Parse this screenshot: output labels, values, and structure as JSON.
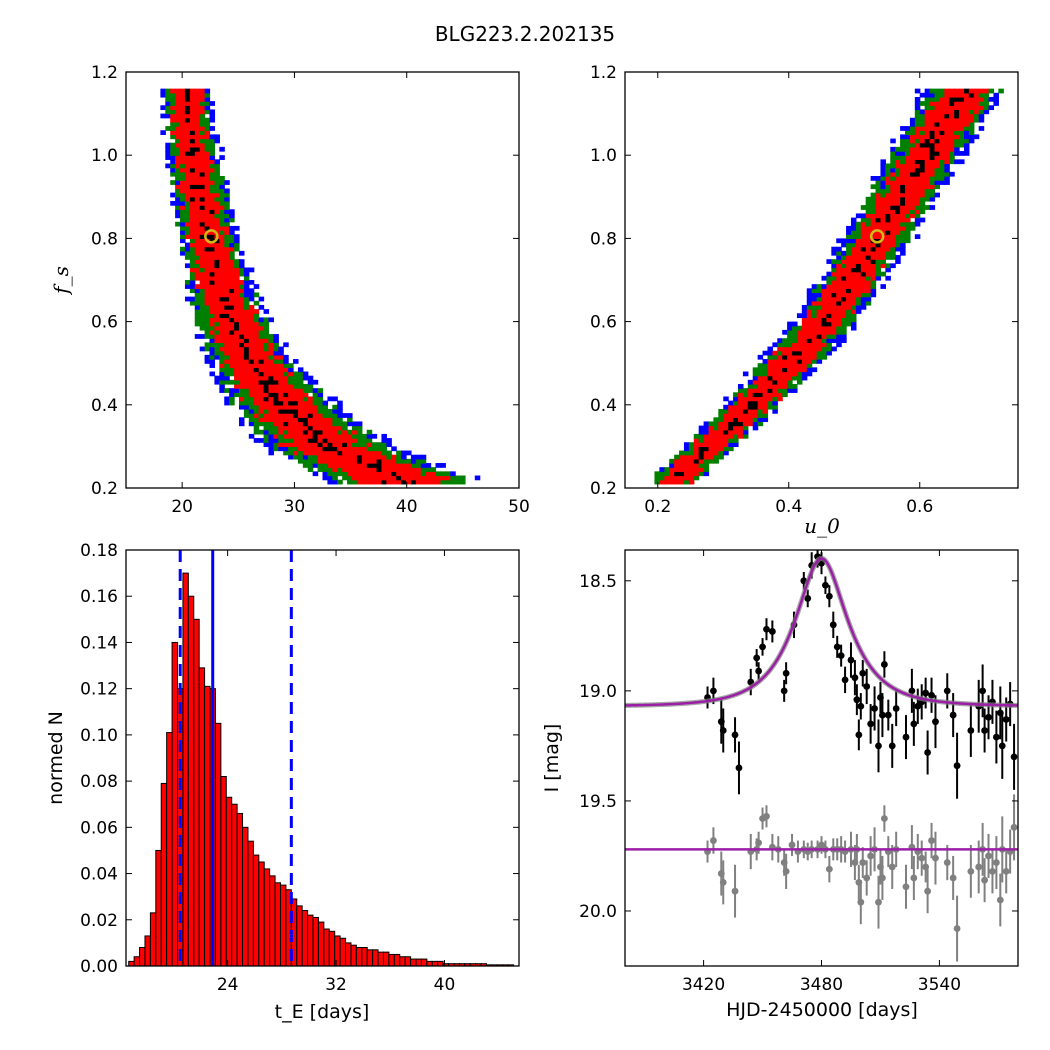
{
  "figure": {
    "title": "BLG223.2.202135"
  },
  "chart_data": [
    {
      "id": "panel_a",
      "type": "heatmap",
      "title": "",
      "xlabel": "",
      "ylabel": "f_s",
      "xlim": [
        15,
        50
      ],
      "ylim": [
        0.2,
        1.2
      ],
      "xticks": [
        20,
        30,
        40,
        50
      ],
      "yticks": [
        0.2,
        0.4,
        0.6,
        0.8,
        1.0,
        1.2
      ],
      "colors": {
        "outer": "#0000ff",
        "middle": "#008000",
        "inner": "#ff0000",
        "core": "#000000",
        "best_fit": "#d4b81a"
      },
      "best_fit": {
        "x": 22.6,
        "y": 0.805
      },
      "band": [
        {
          "y": 0.22,
          "center": 39.5,
          "width": 5.5
        },
        {
          "y": 0.3,
          "center": 33.0,
          "width": 4.6
        },
        {
          "y": 0.4,
          "center": 29.0,
          "width": 3.8
        },
        {
          "y": 0.5,
          "center": 26.3,
          "width": 3.2
        },
        {
          "y": 0.6,
          "center": 24.5,
          "width": 2.7
        },
        {
          "y": 0.7,
          "center": 23.2,
          "width": 2.4
        },
        {
          "y": 0.8,
          "center": 22.3,
          "width": 2.2
        },
        {
          "y": 0.9,
          "center": 21.6,
          "width": 2.0
        },
        {
          "y": 1.0,
          "center": 21.0,
          "width": 1.9
        },
        {
          "y": 1.1,
          "center": 20.5,
          "width": 1.8
        },
        {
          "y": 1.165,
          "center": 20.2,
          "width": 1.8
        }
      ]
    },
    {
      "id": "panel_b",
      "type": "heatmap",
      "title": "",
      "xlabel": "u_0",
      "ylabel": "",
      "xlim": [
        0.15,
        0.75
      ],
      "ylim": [
        0.2,
        1.2
      ],
      "xticks": [
        0.2,
        0.4,
        0.6
      ],
      "yticks": [
        0.2,
        0.4,
        0.6,
        0.8,
        1.0,
        1.2
      ],
      "colors": {
        "outer": "#0000ff",
        "middle": "#008000",
        "inner": "#ff0000",
        "core": "#000000",
        "best_fit": "#d4b81a"
      },
      "best_fit": {
        "x": 0.535,
        "y": 0.805
      },
      "band": [
        {
          "y": 0.22,
          "center": 0.225,
          "width": 0.03
        },
        {
          "y": 0.4,
          "center": 0.345,
          "width": 0.036
        },
        {
          "y": 0.6,
          "center": 0.455,
          "width": 0.04
        },
        {
          "y": 0.8,
          "center": 0.535,
          "width": 0.042
        },
        {
          "y": 1.0,
          "center": 0.61,
          "width": 0.046
        },
        {
          "y": 1.165,
          "center": 0.67,
          "width": 0.05
        }
      ]
    },
    {
      "id": "panel_c",
      "type": "bar",
      "title": "",
      "xlabel": "t_E  [days]",
      "ylabel": "normed N",
      "xlim": [
        16.5,
        45.5
      ],
      "ylim": [
        0,
        0.18
      ],
      "xticks": [
        24,
        32,
        40
      ],
      "yticks": [
        0.0,
        0.02,
        0.04,
        0.06,
        0.08,
        0.1,
        0.12,
        0.14,
        0.16,
        0.18
      ],
      "bin_width": 0.4,
      "bin_start": 16.7,
      "values": [
        0.002,
        0.004,
        0.008,
        0.013,
        0.023,
        0.05,
        0.079,
        0.101,
        0.14,
        0.12,
        0.17,
        0.16,
        0.15,
        0.129,
        0.121,
        0.12,
        0.105,
        0.082,
        0.073,
        0.07,
        0.066,
        0.06,
        0.054,
        0.048,
        0.045,
        0.042,
        0.039,
        0.036,
        0.035,
        0.033,
        0.029,
        0.026,
        0.024,
        0.022,
        0.021,
        0.019,
        0.016,
        0.015,
        0.013,
        0.012,
        0.01,
        0.009,
        0.008,
        0.008,
        0.007,
        0.007,
        0.006,
        0.006,
        0.005,
        0.005,
        0.004,
        0.004,
        0.003,
        0.003,
        0.003,
        0.002,
        0.002,
        0.002,
        0.001,
        0.001,
        0.001,
        0.001,
        0.001,
        0.001,
        0.001,
        0.001,
        0.0005,
        0.0005,
        0.0005,
        0.0005,
        0.0005
      ],
      "bar_color": "#ff0000",
      "vlines": [
        {
          "x": 20.5,
          "style": "dashed",
          "color": "#0000ff"
        },
        {
          "x": 22.9,
          "style": "solid",
          "color": "#0000ff"
        },
        {
          "x": 28.7,
          "style": "dashed",
          "color": "#0000ff"
        }
      ]
    },
    {
      "id": "panel_d",
      "type": "scatter",
      "title": "",
      "xlabel": "HJD-2450000 [days]",
      "ylabel": "I [mag]",
      "xlim": [
        3380,
        3580
      ],
      "ylim": [
        20.25,
        18.36
      ],
      "xticks": [
        3420,
        3480,
        3540
      ],
      "yticks": [
        18.5,
        19.0,
        19.5,
        20.0
      ],
      "model": {
        "t0": 3480,
        "tE": 22.9,
        "u0": 0.535,
        "fs": 0.805,
        "I_base": 19.07,
        "color": "#9b1fa6"
      },
      "series": [
        {
          "color": "#000000",
          "points": [
            [
              3422,
              19.03,
              0.05
            ],
            [
              3425,
              19.0,
              0.06
            ],
            [
              3429,
              19.14,
              0.1
            ],
            [
              3430,
              19.18,
              0.1
            ],
            [
              3436,
              19.2,
              0.08
            ],
            [
              3438,
              19.35,
              0.12
            ],
            [
              3444,
              18.96,
              0.06
            ],
            [
              3447,
              18.85,
              0.04
            ],
            [
              3448,
              18.91,
              0.04
            ],
            [
              3450,
              18.8,
              0.04
            ],
            [
              3452,
              18.72,
              0.05
            ],
            [
              3455,
              18.73,
              0.05
            ],
            [
              3461,
              19.0,
              0.05
            ],
            [
              3462,
              18.92,
              0.05
            ],
            [
              3466,
              18.7,
              0.06
            ],
            [
              3471,
              18.5,
              0.04
            ],
            [
              3473,
              18.58,
              0.04
            ],
            [
              3475,
              18.43,
              0.06
            ],
            [
              3478,
              18.39,
              0.05
            ],
            [
              3480,
              18.42,
              0.05
            ],
            [
              3482,
              18.52,
              0.04
            ],
            [
              3484,
              18.57,
              0.05
            ],
            [
              3486,
              18.7,
              0.06
            ],
            [
              3488,
              18.8,
              0.05
            ],
            [
              3490,
              18.84,
              0.05
            ],
            [
              3492,
              18.95,
              0.06
            ],
            [
              3495,
              18.86,
              0.08
            ],
            [
              3497,
              18.94,
              0.08
            ],
            [
              3498,
              19.04,
              0.07
            ],
            [
              3499,
              19.2,
              0.07
            ],
            [
              3500,
              19.07,
              0.06
            ],
            [
              3501,
              18.92,
              0.06
            ],
            [
              3503,
              18.98,
              0.08
            ],
            [
              3505,
              19.15,
              0.09
            ],
            [
              3507,
              19.08,
              0.1
            ],
            [
              3509,
              19.25,
              0.12
            ],
            [
              3510,
              19.03,
              0.07
            ],
            [
              3511,
              19.11,
              0.1
            ],
            [
              3512,
              18.88,
              0.06
            ],
            [
              3514,
              19.11,
              0.07
            ],
            [
              3516,
              19.25,
              0.1
            ],
            [
              3518,
              19.08,
              0.08
            ],
            [
              3523,
              19.21,
              0.1
            ],
            [
              3526,
              19.0,
              0.1
            ],
            [
              3527,
              19.15,
              0.1
            ],
            [
              3529,
              19.07,
              0.08
            ],
            [
              3531,
              19.05,
              0.08
            ],
            [
              3533,
              19.01,
              0.07
            ],
            [
              3534,
              19.28,
              0.1
            ],
            [
              3536,
              19.02,
              0.08
            ],
            [
              3538,
              19.14,
              0.12
            ],
            [
              3544,
              19.0,
              0.08
            ],
            [
              3547,
              19.11,
              0.1
            ],
            [
              3549,
              19.34,
              0.15
            ],
            [
              3556,
              19.18,
              0.12
            ],
            [
              3560,
              19.07,
              0.12
            ],
            [
              3562,
              19.0,
              0.12
            ],
            [
              3563,
              19.18,
              0.1
            ],
            [
              3565,
              19.12,
              0.1
            ],
            [
              3567,
              19.05,
              0.1
            ],
            [
              3569,
              19.21,
              0.12
            ],
            [
              3571,
              19.1,
              0.12
            ],
            [
              3572,
              19.25,
              0.15
            ],
            [
              3574,
              19.13,
              0.1
            ],
            [
              3576,
              19.06,
              0.1
            ],
            [
              3578,
              19.3,
              0.15
            ]
          ]
        },
        {
          "color": "#808080",
          "points": [
            [
              3422,
              19.73,
              0.05
            ],
            [
              3425,
              19.68,
              0.06
            ],
            [
              3429,
              19.83,
              0.1
            ],
            [
              3430,
              19.87,
              0.1
            ],
            [
              3436,
              19.91,
              0.12
            ],
            [
              3444,
              19.73,
              0.08
            ],
            [
              3447,
              19.72,
              0.05
            ],
            [
              3448,
              19.69,
              0.05
            ],
            [
              3450,
              19.58,
              0.05
            ],
            [
              3452,
              19.57,
              0.05
            ],
            [
              3455,
              19.71,
              0.06
            ],
            [
              3458,
              19.72,
              0.06
            ],
            [
              3461,
              19.78,
              0.06
            ],
            [
              3462,
              19.82,
              0.08
            ],
            [
              3465,
              19.7,
              0.05
            ],
            [
              3468,
              19.73,
              0.05
            ],
            [
              3471,
              19.72,
              0.04
            ],
            [
              3473,
              19.73,
              0.04
            ],
            [
              3475,
              19.72,
              0.04
            ],
            [
              3478,
              19.72,
              0.04
            ],
            [
              3480,
              19.7,
              0.04
            ],
            [
              3482,
              19.72,
              0.04
            ],
            [
              3484,
              19.81,
              0.06
            ],
            [
              3486,
              19.72,
              0.05
            ],
            [
              3488,
              19.72,
              0.05
            ],
            [
              3490,
              19.72,
              0.06
            ],
            [
              3492,
              19.73,
              0.05
            ],
            [
              3495,
              19.72,
              0.08
            ],
            [
              3497,
              19.78,
              0.08
            ],
            [
              3498,
              19.72,
              0.07
            ],
            [
              3499,
              19.87,
              0.08
            ],
            [
              3500,
              19.96,
              0.1
            ],
            [
              3501,
              19.78,
              0.07
            ],
            [
              3503,
              19.85,
              0.08
            ],
            [
              3505,
              19.75,
              0.09
            ],
            [
              3507,
              19.72,
              0.1
            ],
            [
              3509,
              19.96,
              0.12
            ],
            [
              3510,
              19.8,
              0.08
            ],
            [
              3511,
              19.85,
              0.1
            ],
            [
              3512,
              19.58,
              0.06
            ],
            [
              3514,
              19.73,
              0.07
            ],
            [
              3516,
              19.8,
              0.1
            ],
            [
              3518,
              19.72,
              0.08
            ],
            [
              3523,
              19.89,
              0.1
            ],
            [
              3526,
              19.71,
              0.1
            ],
            [
              3527,
              19.85,
              0.1
            ],
            [
              3529,
              19.73,
              0.08
            ],
            [
              3531,
              19.76,
              0.08
            ],
            [
              3533,
              19.8,
              0.07
            ],
            [
              3534,
              19.91,
              0.1
            ],
            [
              3536,
              19.68,
              0.08
            ],
            [
              3538,
              19.76,
              0.12
            ],
            [
              3544,
              19.78,
              0.08
            ],
            [
              3547,
              19.85,
              0.1
            ],
            [
              3549,
              20.08,
              0.15
            ],
            [
              3556,
              19.82,
              0.12
            ],
            [
              3560,
              19.8,
              0.12
            ],
            [
              3562,
              19.72,
              0.12
            ],
            [
              3563,
              19.86,
              0.1
            ],
            [
              3565,
              19.75,
              0.1
            ],
            [
              3567,
              19.82,
              0.1
            ],
            [
              3569,
              19.78,
              0.12
            ],
            [
              3571,
              19.95,
              0.12
            ],
            [
              3572,
              19.72,
              0.15
            ],
            [
              3574,
              19.82,
              0.1
            ],
            [
              3576,
              19.73,
              0.1
            ],
            [
              3578,
              19.62,
              0.15
            ]
          ]
        }
      ],
      "constant_line": {
        "y": 19.72,
        "color": "#9b1fa6"
      }
    }
  ]
}
